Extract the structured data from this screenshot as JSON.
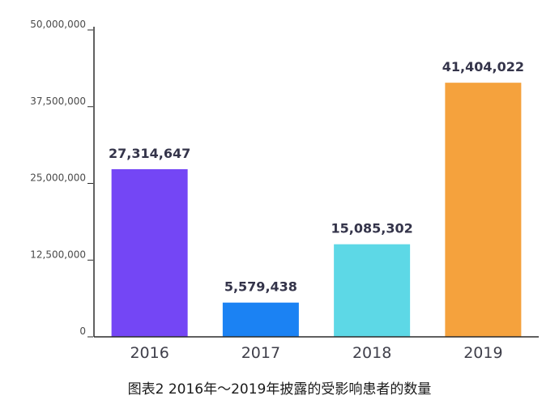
{
  "caption": "图表2 2016年～2019年披露的受影响患者的数量",
  "chart_data": {
    "type": "bar",
    "title": "",
    "xlabel": "",
    "ylabel": "",
    "categories": [
      "2016",
      "2017",
      "2018",
      "2019"
    ],
    "values": [
      27314647,
      5579438,
      15085302,
      41404022
    ],
    "value_labels": [
      "27,314,647",
      "5,579,438",
      "15,085,302",
      "41,404,022"
    ],
    "colors": [
      "#7446f5",
      "#1b82f3",
      "#5dd8e6",
      "#f5a23d"
    ],
    "ylim": [
      0,
      50000000
    ],
    "yticks": [
      0,
      12500000,
      25000000,
      37500000,
      50000000
    ],
    "ytick_labels": [
      "0",
      "12,500,000",
      "25,000,000",
      "37,500,000",
      "50,000,000"
    ],
    "grid": false,
    "legend": "none"
  }
}
